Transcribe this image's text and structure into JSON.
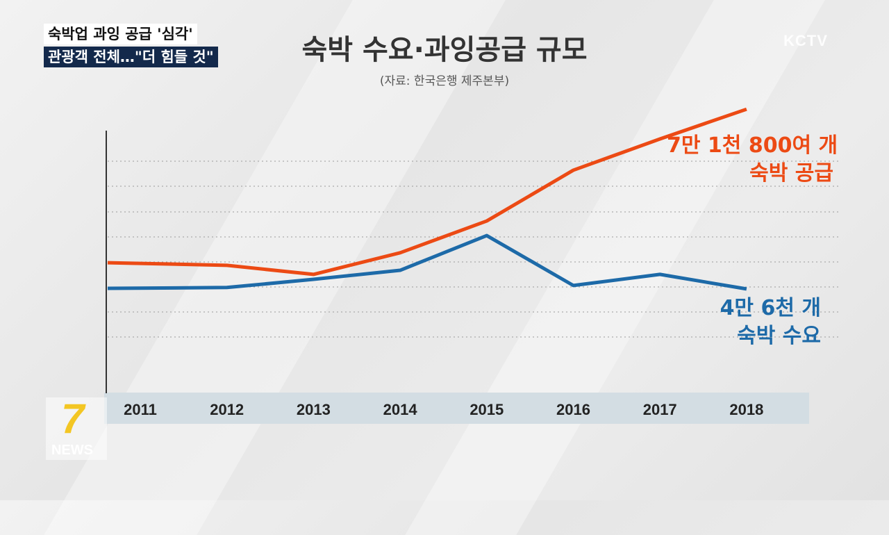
{
  "caption": {
    "line1": "숙박업 과잉 공급 '심각'",
    "line2": "관광객 전체…\"더 힘들 것\""
  },
  "broadcaster": "KCTV",
  "program_logo": {
    "number": "7",
    "text": "NEWS"
  },
  "chart_data": {
    "type": "line",
    "title": "숙박 수요·과잉공급 규모",
    "subtitle": "(자료: 한국은행 제주본부)",
    "categories": [
      "2011",
      "2012",
      "2013",
      "2014",
      "2015",
      "2016",
      "2017",
      "2018"
    ],
    "ylim": [
      0,
      100
    ],
    "yunit": "relative index (no y-axis labels shown)",
    "grid": true,
    "series": [
      {
        "name": "숙박 공급",
        "color": "#ec4a14",
        "values": [
          44.5,
          43.6,
          40.5,
          47.9,
          58.8,
          76.2,
          86.9,
          97.1
        ],
        "end_label": [
          "7만 1천 800여 개",
          "숙박 공급"
        ]
      },
      {
        "name": "숙박 수요",
        "color": "#1d6aa8",
        "values": [
          35.7,
          36.0,
          38.8,
          41.9,
          53.8,
          36.7,
          40.5,
          35.5
        ],
        "end_label": [
          "4만 6천 개",
          "숙박 수요"
        ]
      }
    ]
  }
}
